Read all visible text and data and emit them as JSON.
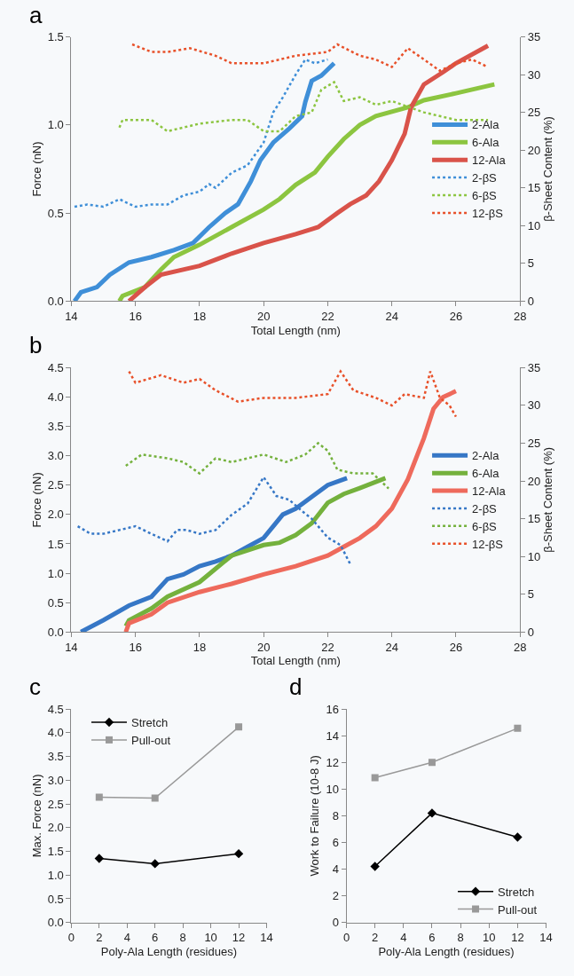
{
  "chart_data": [
    {
      "type": "line",
      "title": "a",
      "xlabel": "Total Length (nm)",
      "ylabel": "Force (nN)",
      "y2label": "β-Sheet Content (%)",
      "xlim": [
        14,
        28
      ],
      "xticks": [
        14,
        16,
        18,
        20,
        22,
        24,
        26,
        28
      ],
      "ylim": [
        0,
        1.5
      ],
      "yticks": [
        {
          "value": 0,
          "label": "0.0"
        },
        0.5,
        {
          "value": 1,
          "label": "1.0"
        },
        1.5
      ],
      "y2lim": [
        0,
        35
      ],
      "y2ticks": [
        0,
        5,
        10,
        15,
        20,
        25,
        30,
        35
      ],
      "legend": "right",
      "grid": false,
      "series": [
        {
          "name": "2-Ala",
          "color": "#3f8fd8",
          "line_style": "solid",
          "x": [
            14.1,
            14.3,
            14.8,
            15.2,
            15.8,
            16.5,
            17.2,
            17.8,
            18.3,
            18.8,
            19.2,
            19.6,
            19.9,
            20.3,
            20.8,
            21.2,
            21.3,
            21.5,
            21.8,
            22.2
          ],
          "values": [
            0,
            0.05,
            0.08,
            0.15,
            0.22,
            0.25,
            0.29,
            0.33,
            0.42,
            0.5,
            0.55,
            0.68,
            0.8,
            0.9,
            0.98,
            1.05,
            1.13,
            1.25,
            1.28,
            1.35
          ]
        },
        {
          "name": "6-Ala",
          "color": "#8cc540",
          "line_style": "solid",
          "x": [
            15.5,
            15.6,
            16.3,
            16.8,
            17.2,
            18,
            19,
            20,
            20.5,
            21,
            21.6,
            22,
            22.5,
            23,
            23.5,
            24.5,
            25,
            26,
            27.2
          ],
          "values": [
            0,
            0.03,
            0.08,
            0.18,
            0.25,
            0.32,
            0.42,
            0.52,
            0.58,
            0.66,
            0.73,
            0.82,
            0.92,
            1.0,
            1.05,
            1.1,
            1.14,
            1.18,
            1.23
          ]
        },
        {
          "name": "12-Ala",
          "color": "#d9534a",
          "line_style": "solid",
          "x": [
            15.8,
            16.3,
            16.8,
            18,
            19,
            20,
            21,
            21.7,
            22.3,
            22.7,
            23.2,
            23.6,
            24,
            24.4,
            24.6,
            25,
            25.6,
            26,
            27
          ],
          "values": [
            0,
            0.08,
            0.15,
            0.2,
            0.27,
            0.33,
            0.38,
            0.42,
            0.5,
            0.55,
            0.6,
            0.68,
            0.8,
            0.95,
            1.1,
            1.23,
            1.3,
            1.35,
            1.45
          ]
        },
        {
          "name": "2-βS",
          "color": "#3f8fd8",
          "line_style": "dotted",
          "axis": "y2",
          "x": [
            14.1,
            14.5,
            15,
            15.5,
            16,
            16.5,
            17,
            17.5,
            18,
            18.3,
            18.5,
            19,
            19.5,
            20,
            20.3,
            20.6,
            21,
            21.3,
            21.6,
            22
          ],
          "values": [
            12.5,
            12.8,
            12.5,
            13.5,
            12.5,
            12.8,
            12.8,
            14,
            14.5,
            15.5,
            15,
            17,
            18,
            21,
            25,
            27,
            30,
            32,
            31.5,
            32
          ]
        },
        {
          "name": "6-βS",
          "color": "#8cc540",
          "line_style": "dotted",
          "axis": "y2",
          "x": [
            15.5,
            15.6,
            16.5,
            17,
            17.5,
            18,
            19,
            19.5,
            20,
            20.5,
            21,
            21.5,
            21.8,
            22.2,
            22.5,
            23,
            23.5,
            24,
            25,
            26,
            27
          ],
          "values": [
            23,
            24,
            24,
            22.5,
            23,
            23.5,
            24,
            24,
            22.5,
            22.5,
            24.5,
            25,
            28,
            29,
            26.5,
            27,
            26,
            26.5,
            25,
            24,
            24
          ]
        },
        {
          "name": "12-βS",
          "color": "#e8512a",
          "line_style": "dotted",
          "axis": "y2",
          "x": [
            15.9,
            16.5,
            17,
            17.7,
            18.5,
            19,
            20,
            21,
            22,
            22.3,
            23,
            23.5,
            24,
            24.5,
            25,
            25.5,
            26,
            26.5,
            27
          ],
          "values": [
            34,
            33,
            33,
            33.5,
            32.5,
            31.5,
            31.5,
            32.5,
            33,
            34,
            32.5,
            32,
            31,
            33.5,
            32,
            30.5,
            31.5,
            32,
            31
          ]
        }
      ]
    },
    {
      "type": "line",
      "title": "b",
      "xlabel": "Total Length (nm)",
      "ylabel": "Force (nN)",
      "y2label": "β-Sheet Content (%)",
      "xlim": [
        14,
        28
      ],
      "xticks": [
        14,
        16,
        18,
        20,
        22,
        24,
        26,
        28
      ],
      "ylim": [
        0,
        4.5
      ],
      "yticks": [
        {
          "value": 0,
          "label": "0.0"
        },
        0.5,
        {
          "value": 1,
          "label": "1.0"
        },
        1.5,
        {
          "value": 2,
          "label": "2.0"
        },
        2.5,
        {
          "value": 3,
          "label": "3.0"
        },
        3.5,
        {
          "value": 4,
          "label": "4.0"
        },
        4.5
      ],
      "y2lim": [
        0,
        35
      ],
      "y2ticks": [
        0,
        5,
        10,
        15,
        20,
        25,
        30,
        35
      ],
      "legend": "right",
      "grid": false,
      "series": [
        {
          "name": "2-Ala",
          "color": "#3677c6",
          "line_style": "solid",
          "x": [
            14.3,
            15,
            15.8,
            16.5,
            17,
            17.5,
            18,
            18.5,
            19,
            19.5,
            20,
            20.3,
            20.6,
            21,
            21.5,
            22,
            22.6
          ],
          "values": [
            0,
            0.2,
            0.45,
            0.6,
            0.9,
            0.98,
            1.12,
            1.2,
            1.3,
            1.45,
            1.6,
            1.8,
            2.0,
            2.1,
            2.3,
            2.5,
            2.62
          ]
        },
        {
          "name": "6-Ala",
          "color": "#74b13d",
          "line_style": "solid",
          "x": [
            15.7,
            15.8,
            16.5,
            17,
            18,
            19,
            20,
            20.5,
            21,
            21.5,
            22,
            22.5,
            23,
            23.8
          ],
          "values": [
            0.1,
            0.2,
            0.4,
            0.6,
            0.85,
            1.3,
            1.48,
            1.52,
            1.65,
            1.85,
            2.2,
            2.35,
            2.45,
            2.62
          ]
        },
        {
          "name": "12-Ala",
          "color": "#ee6a5c",
          "line_style": "solid",
          "x": [
            15.7,
            15.8,
            16.5,
            17,
            18,
            19,
            20,
            21,
            22,
            22.5,
            23,
            23.5,
            24,
            24.5,
            25,
            25.3,
            25.6,
            26
          ],
          "values": [
            0,
            0.15,
            0.3,
            0.5,
            0.68,
            0.82,
            0.98,
            1.12,
            1.3,
            1.45,
            1.6,
            1.8,
            2.1,
            2.6,
            3.3,
            3.8,
            4.0,
            4.1
          ]
        },
        {
          "name": "2-βS",
          "color": "#3677c6",
          "line_style": "dotted",
          "axis": "y2",
          "x": [
            14.2,
            14.6,
            15,
            15.5,
            16,
            16.5,
            17,
            17.3,
            17.6,
            18,
            18.5,
            19,
            19.5,
            20,
            20.4,
            20.8,
            21.2,
            21.5,
            22,
            22.4,
            22.7
          ],
          "values": [
            14,
            13,
            13,
            13.5,
            14,
            13,
            12,
            13.5,
            13.5,
            13,
            13.5,
            15.5,
            17,
            20.5,
            18,
            17.5,
            16,
            15,
            12.5,
            11.5,
            9
          ]
        },
        {
          "name": "6-βS",
          "color": "#74b13d",
          "line_style": "dotted",
          "axis": "y2",
          "x": [
            15.7,
            16.2,
            17,
            17.5,
            18,
            18.5,
            19,
            20,
            20.7,
            21.3,
            21.7,
            22,
            22.3,
            22.8,
            23.4,
            23.9
          ],
          "values": [
            22,
            23.5,
            23,
            22.5,
            21,
            23,
            22.5,
            23.5,
            22.5,
            23.5,
            25,
            24,
            21.5,
            21,
            21,
            19
          ]
        },
        {
          "name": "12-βS",
          "color": "#e8512a",
          "line_style": "dotted",
          "axis": "y2",
          "x": [
            15.8,
            16,
            16.8,
            17.5,
            18,
            18.5,
            19.2,
            20,
            21,
            22,
            22.4,
            22.8,
            23.5,
            24,
            24.4,
            25,
            25.2,
            25.5,
            25.8,
            26
          ],
          "values": [
            34.5,
            33,
            34,
            33,
            33.5,
            32,
            30.5,
            31,
            31,
            31.5,
            34.5,
            32,
            31,
            30,
            31.5,
            31,
            34.5,
            31,
            30,
            28.5
          ]
        }
      ]
    },
    {
      "type": "line",
      "title": "c",
      "xlabel": "Poly-Ala Length (residues)",
      "ylabel": "Max. Force (nN)",
      "xlim": [
        0,
        14
      ],
      "xticks": [
        0,
        2,
        4,
        6,
        8,
        10,
        12,
        14
      ],
      "ylim": [
        0,
        4.5
      ],
      "yticks": [
        {
          "value": 0,
          "label": "0.0"
        },
        0.5,
        {
          "value": 1,
          "label": "1.0"
        },
        1.5,
        {
          "value": 2,
          "label": "2.0"
        },
        2.5,
        {
          "value": 3,
          "label": "3.0"
        },
        3.5,
        {
          "value": 4,
          "label": "4.0"
        },
        4.5
      ],
      "legend": "top left",
      "grid": false,
      "series": [
        {
          "name": "Stretch",
          "color": "#000000",
          "marker": "diamond",
          "x": [
            2,
            6,
            12
          ],
          "values": [
            1.35,
            1.24,
            1.45
          ]
        },
        {
          "name": "Pull-out",
          "color": "#999999",
          "marker": "square",
          "x": [
            2,
            6,
            12
          ],
          "values": [
            2.64,
            2.62,
            4.12
          ]
        }
      ]
    },
    {
      "type": "line",
      "title": "d",
      "xlabel": "Poly-Ala Length (residues)",
      "ylabel": "Work to Failure (10-8 J)",
      "xlim": [
        0,
        14
      ],
      "xticks": [
        0,
        2,
        4,
        6,
        8,
        10,
        12,
        14
      ],
      "ylim": [
        0,
        16
      ],
      "yticks": [
        0,
        2,
        4,
        6,
        8,
        10,
        12,
        14,
        16
      ],
      "legend": "bottom right",
      "grid": false,
      "series": [
        {
          "name": "Stretch",
          "color": "#000000",
          "marker": "diamond",
          "x": [
            2,
            6,
            12
          ],
          "values": [
            4.2,
            8.2,
            6.4
          ]
        },
        {
          "name": "Pull-out",
          "color": "#999999",
          "marker": "square",
          "x": [
            2,
            6,
            12
          ],
          "values": [
            10.85,
            12.0,
            14.55
          ]
        }
      ]
    }
  ]
}
